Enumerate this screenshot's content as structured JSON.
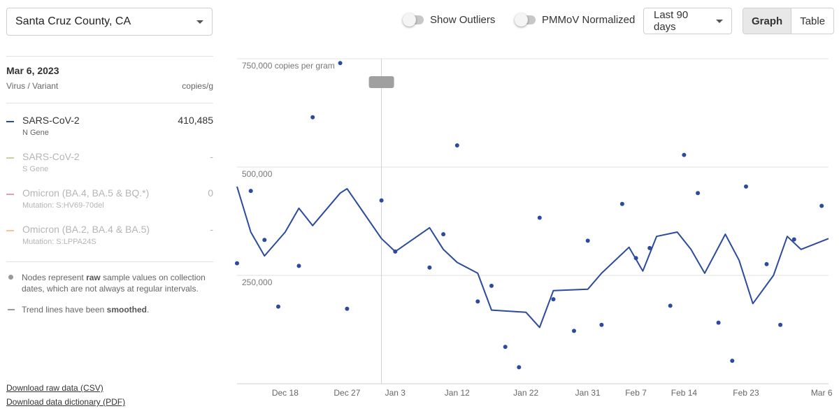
{
  "location": {
    "selected": "Santa Cruz County, CA"
  },
  "toggles": {
    "outliers_label": "Show Outliers",
    "pmmov_label": "PMMoV Normalized"
  },
  "range": {
    "selected": "Last 90 days"
  },
  "view": {
    "graph_label": "Graph",
    "table_label": "Table",
    "active": "Graph"
  },
  "sidebar": {
    "date": "Mar 6, 2023",
    "col_virus": "Virus / Variant",
    "col_unit": "copies/g",
    "series": [
      {
        "name": "SARS-CoV-2",
        "sub": "N Gene",
        "value": "410,485",
        "color": "#2c4a9e",
        "active": true
      },
      {
        "name": "SARS-CoV-2",
        "sub": "S Gene",
        "value": "-",
        "color": "#c8d1a0",
        "active": false
      },
      {
        "name": "Omicron (BA.4, BA.5 & BQ.*)",
        "sub": "Mutation: S:HV69-70del",
        "value": "0",
        "color": "#e3a0b4",
        "active": false
      },
      {
        "name": "Omicron (BA.2, BA.4 & BA.5)",
        "sub": "Mutation: S:LPPA24S",
        "value": "-",
        "color": "#f2c79a",
        "active": false
      }
    ],
    "note_nodes_pre": "Nodes represent ",
    "note_nodes_bold": "raw",
    "note_nodes_post": " sample values on collection dates, which are not always at regular intervals.",
    "note_trend_pre": "Trend lines have been ",
    "note_trend_bold": "smoothed",
    "note_trend_post": "."
  },
  "downloads": {
    "csv": "Download raw data (CSV)",
    "pdf": "Download data dictionary (PDF)"
  },
  "chart_data": {
    "type": "line",
    "unit_label": "copies per gram",
    "ylim": [
      0,
      750000
    ],
    "yticks": [
      250000,
      500000,
      750000
    ],
    "ytick_labels": [
      "250,000",
      "500,000",
      "750,000 copies per gram"
    ],
    "x_start": "Dec 11",
    "x_end": "Mar 7",
    "xtick_labels": [
      "Dec 18",
      "Dec 27",
      "Jan 3",
      "Jan 12",
      "Jan 22",
      "Jan 31",
      "Feb 7",
      "Feb 14",
      "Feb 23",
      "Mar 6"
    ],
    "xtick_days": [
      7,
      16,
      23,
      32,
      42,
      51,
      58,
      65,
      74,
      85
    ],
    "hover_day": 21,
    "grid": true,
    "series": [
      {
        "name": "SARS-CoV-2",
        "sub": "N Gene",
        "color": "#2c4a9e",
        "trend": [
          [
            0,
            455000
          ],
          [
            2,
            350000
          ],
          [
            4,
            295000
          ],
          [
            7,
            350000
          ],
          [
            9,
            405000
          ],
          [
            11,
            365000
          ],
          [
            15,
            440000
          ],
          [
            16,
            450000
          ],
          [
            21,
            335000
          ],
          [
            23,
            305000
          ],
          [
            28,
            360000
          ],
          [
            30,
            310000
          ],
          [
            32,
            280000
          ],
          [
            35,
            255000
          ],
          [
            37,
            170000
          ],
          [
            42,
            165000
          ],
          [
            44,
            130000
          ],
          [
            46,
            215000
          ],
          [
            51,
            218000
          ],
          [
            53,
            255000
          ],
          [
            57,
            315000
          ],
          [
            59,
            260000
          ],
          [
            61,
            340000
          ],
          [
            64,
            350000
          ],
          [
            66,
            310000
          ],
          [
            68,
            255000
          ],
          [
            71,
            345000
          ],
          [
            73,
            285000
          ],
          [
            75,
            185000
          ],
          [
            78,
            250000
          ],
          [
            80,
            340000
          ],
          [
            82,
            310000
          ],
          [
            86,
            335000
          ]
        ],
        "points": [
          [
            0,
            278000
          ],
          [
            2,
            445000
          ],
          [
            4,
            332000
          ],
          [
            6,
            178000
          ],
          [
            9,
            272000
          ],
          [
            11,
            615000
          ],
          [
            15,
            740000
          ],
          [
            16,
            173000
          ],
          [
            21,
            423000
          ],
          [
            23,
            305000
          ],
          [
            28,
            268000
          ],
          [
            30,
            345000
          ],
          [
            32,
            550000
          ],
          [
            35,
            190000
          ],
          [
            37,
            226000
          ],
          [
            39,
            85000
          ],
          [
            41,
            38000
          ],
          [
            44,
            383000
          ],
          [
            46,
            195000
          ],
          [
            49,
            122000
          ],
          [
            51,
            330000
          ],
          [
            53,
            136000
          ],
          [
            56,
            415000
          ],
          [
            58,
            290000
          ],
          [
            60,
            313000
          ],
          [
            63,
            180000
          ],
          [
            65,
            528000
          ],
          [
            67,
            440000
          ],
          [
            70,
            141000
          ],
          [
            72,
            53000
          ],
          [
            74,
            455000
          ],
          [
            77,
            276000
          ],
          [
            79,
            136000
          ],
          [
            81,
            333000
          ],
          [
            85,
            410485
          ]
        ]
      }
    ]
  }
}
